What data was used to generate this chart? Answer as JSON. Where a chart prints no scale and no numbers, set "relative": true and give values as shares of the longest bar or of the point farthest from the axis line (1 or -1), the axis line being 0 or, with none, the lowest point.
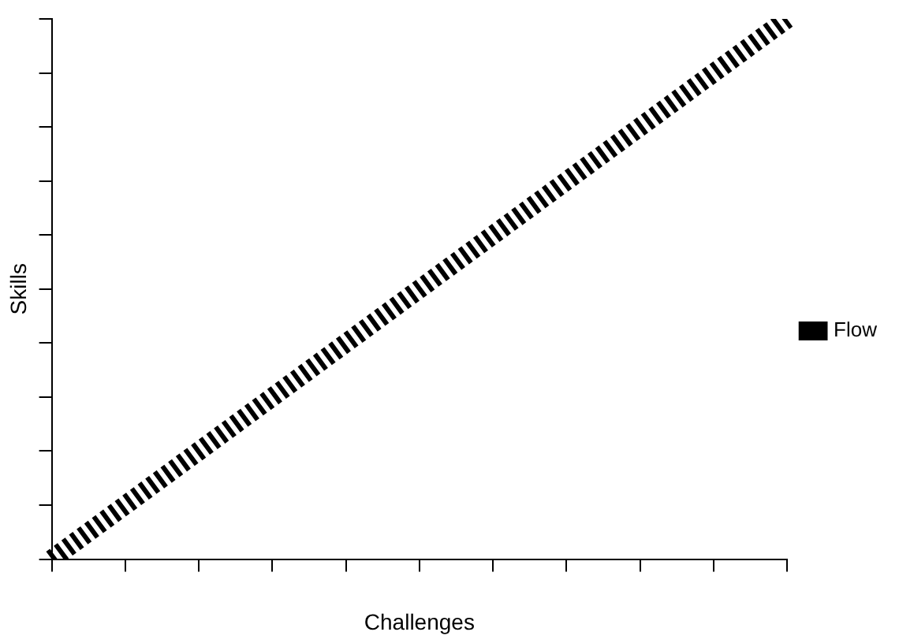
{
  "chart_data": {
    "type": "line",
    "xlabel": "Challenges",
    "ylabel": "Skills",
    "relative": true,
    "categories": [
      null,
      null,
      null,
      null,
      null,
      null,
      null,
      null,
      null,
      null,
      null
    ],
    "series": [
      {
        "name": "Flow",
        "color": "#000000",
        "values": [
          0,
          0.1,
          0.2,
          0.3,
          0.4,
          0.5,
          0.6,
          0.7,
          0.8,
          0.9,
          1
        ]
      }
    ],
    "legend": "right",
    "grid": false,
    "marker": "none",
    "line_style": "dashed"
  }
}
